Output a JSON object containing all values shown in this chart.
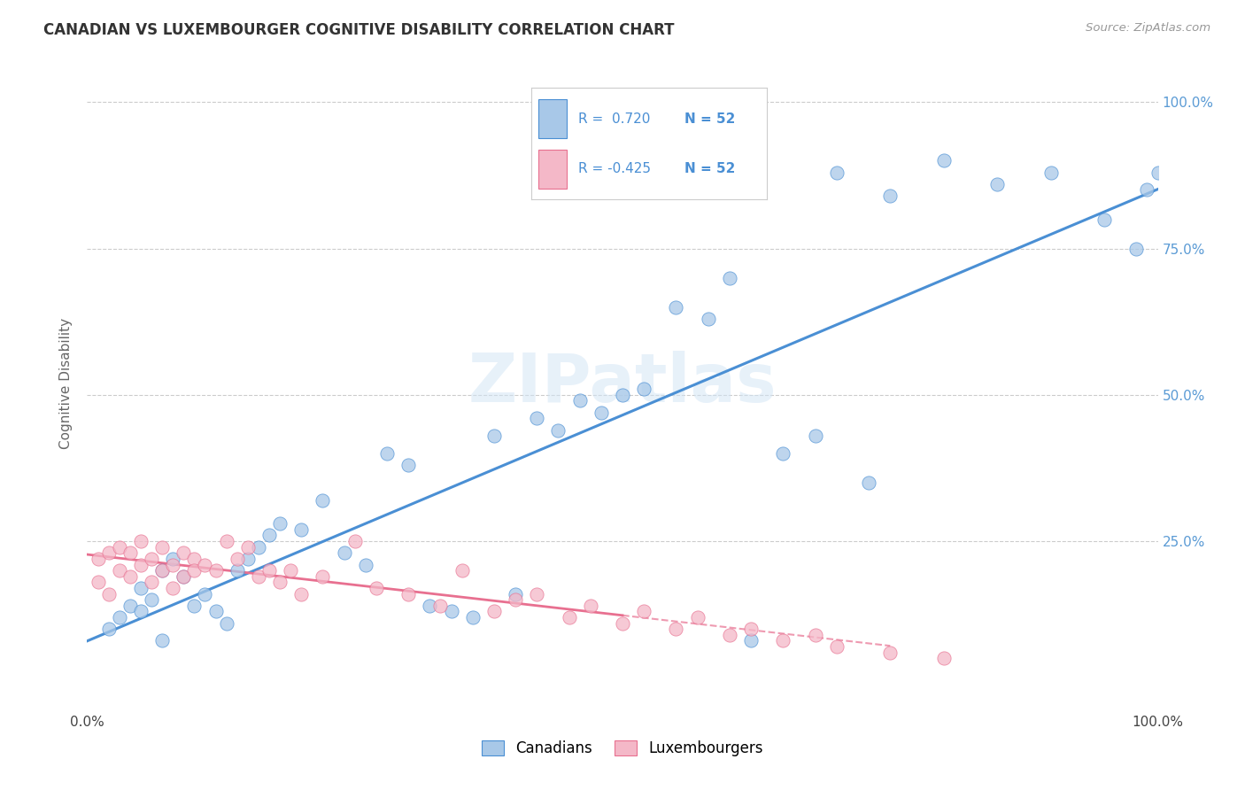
{
  "title": "CANADIAN VS LUXEMBOURGER COGNITIVE DISABILITY CORRELATION CHART",
  "source": "Source: ZipAtlas.com",
  "ylabel": "Cognitive Disability",
  "watermark": "ZIPatlas",
  "r_canadian": 0.72,
  "r_luxembourger": -0.425,
  "n_canadian": 52,
  "n_luxembourger": 52,
  "xlim": [
    0.0,
    1.0
  ],
  "ylim": [
    -0.04,
    1.08
  ],
  "xtick_labels": [
    "0.0%",
    "",
    "",
    "",
    "100.0%"
  ],
  "xtick_vals": [
    0.0,
    0.25,
    0.5,
    0.75,
    1.0
  ],
  "ytick_vals": [
    0.25,
    0.5,
    0.75,
    1.0
  ],
  "ytick_right_labels": [
    "25.0%",
    "50.0%",
    "75.0%",
    "100.0%"
  ],
  "canadian_color": "#a8c8e8",
  "luxembourger_color": "#f4b8c8",
  "canadian_line_color": "#4a8fd4",
  "luxembourger_line_color": "#e87090",
  "title_color": "#333333",
  "tick_color_right": "#5b9bd5",
  "legend_r_color": "#4a8fd4",
  "canadians_x": [
    0.02,
    0.03,
    0.04,
    0.05,
    0.05,
    0.06,
    0.07,
    0.07,
    0.08,
    0.09,
    0.1,
    0.11,
    0.12,
    0.13,
    0.14,
    0.15,
    0.16,
    0.17,
    0.18,
    0.2,
    0.22,
    0.24,
    0.26,
    0.28,
    0.3,
    0.32,
    0.34,
    0.36,
    0.38,
    0.4,
    0.42,
    0.44,
    0.46,
    0.48,
    0.5,
    0.52,
    0.55,
    0.58,
    0.6,
    0.62,
    0.65,
    0.68,
    0.7,
    0.73,
    0.75,
    0.8,
    0.85,
    0.9,
    0.95,
    0.98,
    0.99,
    1.0
  ],
  "canadians_y": [
    0.1,
    0.12,
    0.14,
    0.13,
    0.17,
    0.15,
    0.2,
    0.08,
    0.22,
    0.19,
    0.14,
    0.16,
    0.13,
    0.11,
    0.2,
    0.22,
    0.24,
    0.26,
    0.28,
    0.27,
    0.32,
    0.23,
    0.21,
    0.4,
    0.38,
    0.14,
    0.13,
    0.12,
    0.43,
    0.16,
    0.46,
    0.44,
    0.49,
    0.47,
    0.5,
    0.51,
    0.65,
    0.63,
    0.7,
    0.08,
    0.4,
    0.43,
    0.88,
    0.35,
    0.84,
    0.9,
    0.86,
    0.88,
    0.8,
    0.75,
    0.85,
    0.88
  ],
  "luxembourgers_x": [
    0.01,
    0.01,
    0.02,
    0.02,
    0.03,
    0.03,
    0.04,
    0.04,
    0.05,
    0.05,
    0.06,
    0.06,
    0.07,
    0.07,
    0.08,
    0.08,
    0.09,
    0.09,
    0.1,
    0.1,
    0.11,
    0.12,
    0.13,
    0.14,
    0.15,
    0.16,
    0.17,
    0.18,
    0.19,
    0.2,
    0.22,
    0.25,
    0.27,
    0.3,
    0.33,
    0.35,
    0.38,
    0.4,
    0.42,
    0.45,
    0.47,
    0.5,
    0.52,
    0.55,
    0.57,
    0.6,
    0.62,
    0.65,
    0.68,
    0.7,
    0.75,
    0.8
  ],
  "luxembourgers_y": [
    0.18,
    0.22,
    0.16,
    0.23,
    0.2,
    0.24,
    0.19,
    0.23,
    0.21,
    0.25,
    0.22,
    0.18,
    0.2,
    0.24,
    0.21,
    0.17,
    0.23,
    0.19,
    0.22,
    0.2,
    0.21,
    0.2,
    0.25,
    0.22,
    0.24,
    0.19,
    0.2,
    0.18,
    0.2,
    0.16,
    0.19,
    0.25,
    0.17,
    0.16,
    0.14,
    0.2,
    0.13,
    0.15,
    0.16,
    0.12,
    0.14,
    0.11,
    0.13,
    0.1,
    0.12,
    0.09,
    0.1,
    0.08,
    0.09,
    0.07,
    0.06,
    0.05
  ]
}
